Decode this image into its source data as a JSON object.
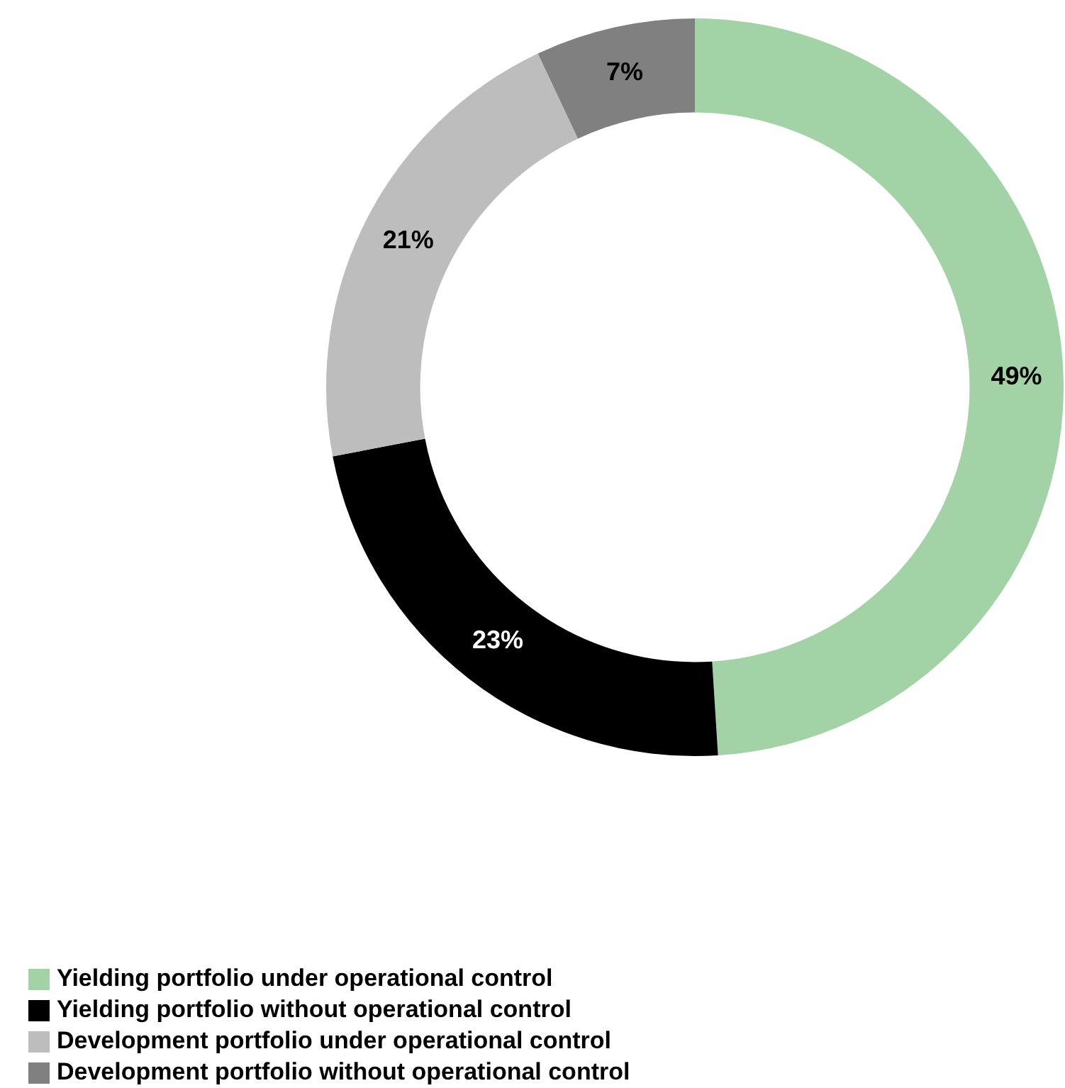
{
  "chart_data": {
    "type": "donut",
    "categories": [
      "Yielding portfolio under operational control",
      "Yielding portfolio without operational control",
      "Development portfolio under operational control",
      "Development portfolio without operational control"
    ],
    "values": [
      49,
      23,
      21,
      7
    ],
    "colors": [
      "#a3d2a7",
      "#000000",
      "#bdbdbd",
      "#808080"
    ],
    "value_labels": [
      "49%",
      "23%",
      "21%",
      "7%"
    ],
    "legend": "bottom left"
  }
}
